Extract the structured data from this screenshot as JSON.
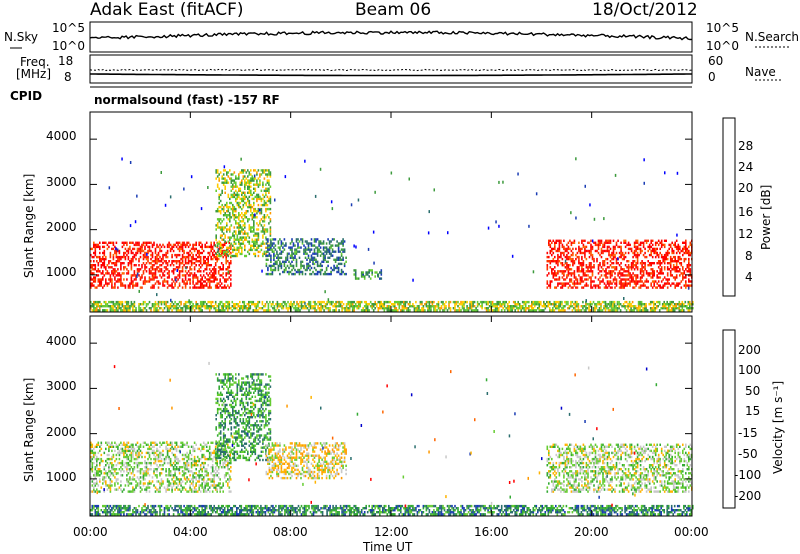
{
  "header": {
    "radar": "Adak East (fitACF)",
    "beam": "Beam 06",
    "date": "18/Oct/2012"
  },
  "summary": {
    "nsky_label": "N.Sky",
    "nsky_ticks": [
      "10^5",
      "10^0"
    ],
    "nsearch_label": "N.Search",
    "nsearch_ticks": [
      "10^5",
      "10^0"
    ],
    "freq_label_1": "Freq.",
    "freq_label_2": "[MHz]",
    "freq_ticks": [
      "18",
      "8"
    ],
    "nave_label": "Nave",
    "nave_ticks": [
      "60",
      "0"
    ],
    "cpid_label": "CPID",
    "cpid_text": "normalsound (fast) -157 RF"
  },
  "panels": {
    "y_label": "Slant Range [km]",
    "y_ticks": [
      "4000",
      "3000",
      "2000",
      "1000"
    ],
    "x_label": "Time UT",
    "x_ticks": [
      "00:00",
      "04:00",
      "08:00",
      "12:00",
      "16:00",
      "20:00",
      "00:00"
    ]
  },
  "colorbars": {
    "power": {
      "label": "Power [dB]",
      "ticks": [
        "28",
        "24",
        "20",
        "16",
        "12",
        "8",
        "4"
      ],
      "colors": [
        "#0000ff",
        "#1a3cb4",
        "#2b6e6e",
        "#3c9a3c",
        "#66cc33",
        "#ffcc00",
        "#ff9900",
        "#ff6600",
        "#ff3300",
        "#ff0000"
      ]
    },
    "velocity": {
      "label": "Velocity [m s⁻¹]",
      "ticks": [
        "200",
        "100",
        "50",
        "15",
        "-15",
        "-50",
        "-100",
        "-200"
      ],
      "colors": [
        "#ff0000",
        "#ff6600",
        "#ff9900",
        "#ffb300",
        "#c8c8c8",
        "#66cc33",
        "#33aa33",
        "#2b6e6e",
        "#1a3cb4",
        "#0000cc"
      ]
    }
  },
  "chart_data": {
    "type": "heatmap",
    "title": "Adak East (fitACF) Beam 06 18/Oct/2012",
    "xlabel": "Time UT",
    "ylabel": "Slant Range [km]",
    "xlim": [
      0,
      24
    ],
    "ylim": [
      180,
      4600
    ],
    "x_ticks_hours": [
      0,
      4,
      8,
      12,
      16,
      20,
      24
    ],
    "y_ticks_km": [
      1000,
      2000,
      3000,
      4000
    ],
    "power_scale_db": [
      0,
      30
    ],
    "velocity_scale": [
      -200,
      200
    ],
    "power_regions": [
      {
        "t0": 0.0,
        "t1": 5.6,
        "r0": 700,
        "r1": 1700,
        "power": 28
      },
      {
        "t0": 18.2,
        "t1": 24.0,
        "r0": 700,
        "r1": 1750,
        "power": 28
      },
      {
        "t0": 5.0,
        "t1": 7.2,
        "r0": 1400,
        "r1": 3300,
        "power": 14
      },
      {
        "t0": 7.0,
        "t1": 10.2,
        "r0": 1000,
        "r1": 1800,
        "power": 8
      },
      {
        "t0": 10.5,
        "t1": 11.6,
        "r0": 900,
        "r1": 1100,
        "power": 10
      },
      {
        "t0": 0.0,
        "t1": 24.0,
        "r0": 200,
        "r1": 400,
        "power": 14
      }
    ],
    "velocity_regions": [
      {
        "t0": 0.0,
        "t1": 5.6,
        "r0": 700,
        "r1": 1800,
        "velocity": 0
      },
      {
        "t0": 18.2,
        "t1": 24.0,
        "r0": 700,
        "r1": 1750,
        "velocity": 0
      },
      {
        "t0": 5.0,
        "t1": 7.2,
        "r0": 1400,
        "r1": 3300,
        "velocity": -60
      },
      {
        "t0": 7.0,
        "t1": 10.2,
        "r0": 1000,
        "r1": 1800,
        "velocity": 40
      },
      {
        "t0": 0.0,
        "t1": 24.0,
        "r0": 200,
        "r1": 400,
        "velocity": -80
      }
    ]
  }
}
